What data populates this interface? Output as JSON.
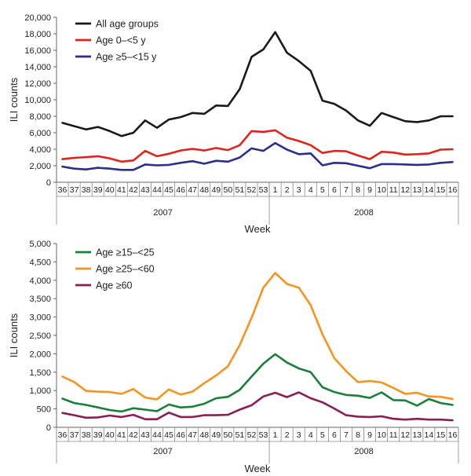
{
  "chart_data": [
    {
      "type": "line",
      "ylabel": "ILI counts",
      "xlabel": "Week",
      "ylim": [
        0,
        20000
      ],
      "yticks": [
        "0",
        "2,000",
        "4,000",
        "6,000",
        "8,000",
        "10,000",
        "12,000",
        "14,000",
        "16,000",
        "18,000",
        "20,000"
      ],
      "legend_position": "top-left",
      "grid": false,
      "categories": [
        "36",
        "37",
        "38",
        "39",
        "40",
        "41",
        "42",
        "43",
        "44",
        "45",
        "46",
        "47",
        "48",
        "49",
        "50",
        "51",
        "52",
        "53",
        "1",
        "2",
        "3",
        "4",
        "5",
        "6",
        "7",
        "8",
        "9",
        "10",
        "11",
        "12",
        "13",
        "14",
        "15",
        "16"
      ],
      "years": [
        {
          "label": "2007"
        },
        {
          "label": "2008"
        }
      ],
      "series": [
        {
          "name": "All age groups",
          "color": "#1a1a1a",
          "values": [
            7200,
            6800,
            6400,
            6700,
            6200,
            5600,
            6000,
            7500,
            6600,
            7600,
            7900,
            8400,
            8300,
            9300,
            9250,
            11300,
            15200,
            16100,
            18200,
            15700,
            14700,
            13500,
            9900,
            9500,
            8700,
            7500,
            6850,
            8400,
            7900,
            7400,
            7300,
            7500,
            8000,
            8000
          ]
        },
        {
          "name": "Age 0–<5 y",
          "color": "#e3231b",
          "values": [
            2800,
            2950,
            3050,
            3150,
            2900,
            2500,
            2650,
            3800,
            3150,
            3450,
            3850,
            4050,
            3850,
            4150,
            3900,
            4500,
            6200,
            6100,
            6300,
            5400,
            5000,
            4500,
            3550,
            3800,
            3750,
            3250,
            2800,
            3700,
            3600,
            3350,
            3400,
            3500,
            3950,
            4000
          ]
        },
        {
          "name": "Age ≥5–<15 y",
          "color": "#2b2e8c",
          "values": [
            1900,
            1650,
            1550,
            1750,
            1650,
            1500,
            1500,
            2150,
            2050,
            2100,
            2350,
            2550,
            2250,
            2600,
            2500,
            3000,
            4100,
            3800,
            4750,
            3950,
            3400,
            3500,
            2050,
            2350,
            2300,
            2000,
            1700,
            2200,
            2200,
            2150,
            2100,
            2150,
            2350,
            2450
          ]
        }
      ]
    },
    {
      "type": "line",
      "ylabel": "ILI counts",
      "xlabel": "Week",
      "ylim": [
        0,
        5000
      ],
      "yticks": [
        "0",
        "500",
        "1,000",
        "1,500",
        "2,000",
        "2,500",
        "3,000",
        "3,500",
        "4,000",
        "4,500",
        "5,000"
      ],
      "legend_position": "top-left",
      "grid": false,
      "categories": [
        "36",
        "37",
        "38",
        "39",
        "40",
        "41",
        "42",
        "43",
        "44",
        "45",
        "46",
        "47",
        "48",
        "49",
        "50",
        "51",
        "52",
        "53",
        "1",
        "2",
        "3",
        "4",
        "5",
        "6",
        "7",
        "8",
        "9",
        "10",
        "11",
        "12",
        "13",
        "14",
        "15",
        "16"
      ],
      "years": [
        {
          "label": "2007"
        },
        {
          "label": "2008"
        }
      ],
      "series": [
        {
          "name": "Age ≥15–<25",
          "color": "#1a7f3a",
          "values": [
            780,
            660,
            610,
            540,
            470,
            430,
            520,
            480,
            440,
            620,
            540,
            560,
            640,
            790,
            830,
            1020,
            1380,
            1730,
            1990,
            1760,
            1600,
            1500,
            1090,
            960,
            880,
            860,
            800,
            950,
            740,
            730,
            590,
            770,
            660,
            610
          ]
        },
        {
          "name": "Age ≥25–<60",
          "color": "#f7931e",
          "values": [
            1380,
            1230,
            990,
            970,
            960,
            910,
            1040,
            810,
            760,
            1030,
            890,
            970,
            1200,
            1410,
            1660,
            2240,
            2980,
            3800,
            4200,
            3900,
            3800,
            3320,
            2530,
            1880,
            1530,
            1230,
            1260,
            1220,
            1070,
            910,
            940,
            840,
            830,
            770
          ]
        },
        {
          "name": "Age ≥60",
          "color": "#8b1e53",
          "values": [
            390,
            330,
            260,
            270,
            320,
            280,
            340,
            220,
            220,
            400,
            280,
            280,
            330,
            330,
            340,
            480,
            600,
            840,
            940,
            820,
            950,
            790,
            680,
            510,
            330,
            290,
            280,
            300,
            230,
            210,
            230,
            210,
            210,
            190
          ]
        }
      ]
    }
  ]
}
